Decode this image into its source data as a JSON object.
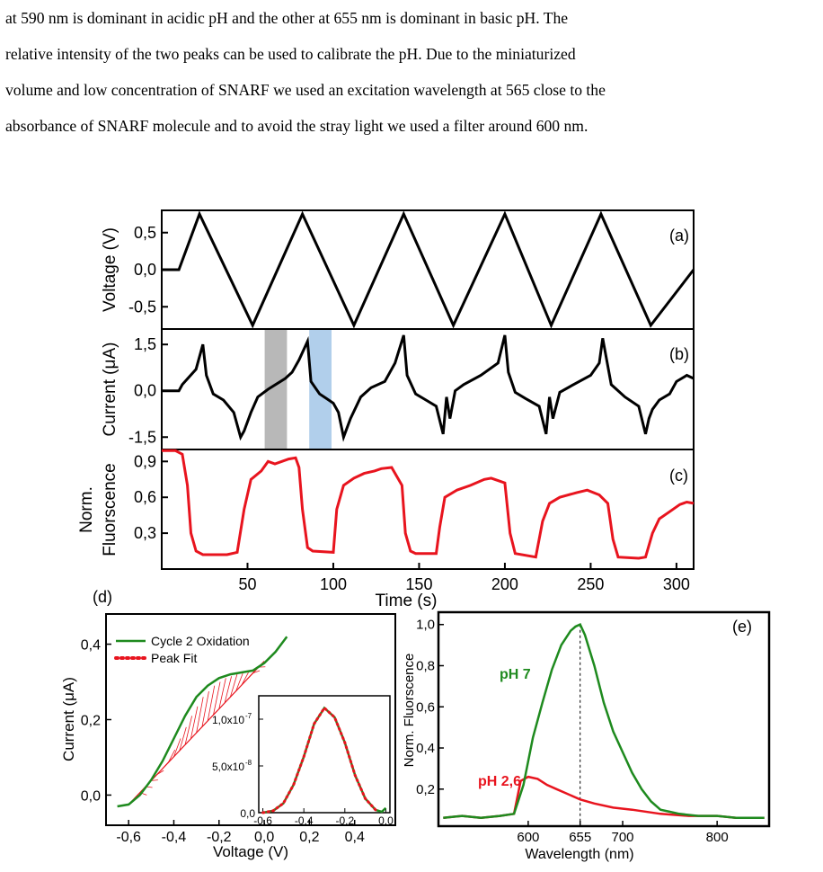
{
  "paragraph": {
    "lines": [
      "at 590 nm is dominant in acidic pH and the other at 655 nm is dominant in basic pH. The",
      "relative intensity of the two peaks can be used to calibrate the pH. Due to the miniaturized",
      "volume and low concentration of SNARF we used an excitation wavelength at 565 close to the",
      "absorbance of SNARF molecule and to avoid the stray light we used a filter around 600 nm."
    ]
  },
  "panel_a": {
    "label": "(a)",
    "ylabel": "Voltage (V)",
    "yticks": [
      "0,5",
      "0,0",
      "-0,5"
    ]
  },
  "panel_b": {
    "label": "(b)",
    "ylabel": "Current (μA)",
    "yticks": [
      "1,5",
      "0,0",
      "-1,5"
    ],
    "highlight_colors": [
      "#a6a6a6",
      "#9dc3e6"
    ]
  },
  "panel_c": {
    "label": "(c)",
    "ylabel_line1": "Norm.",
    "ylabel_line2": "Fluorscence",
    "yticks": [
      "0,9",
      "0,6",
      "0,3"
    ],
    "xticks": [
      "50",
      "100",
      "150",
      "200",
      "250",
      "300"
    ],
    "xlabel": "Time (s)"
  },
  "panel_d": {
    "label": "(d)",
    "ylabel": "Current (μA)",
    "xlabel": "Voltage (V)",
    "yticks": [
      "0,4",
      "0,2",
      "0,0"
    ],
    "xticks": [
      "-0,6",
      "-0,4",
      "-0,2",
      "0,0",
      "0,2",
      "0,4"
    ],
    "legend": [
      "Cycle 2 Oxidation",
      "Peak Fit"
    ],
    "inset_yticks": [
      "1,0x10",
      "5,0x10",
      "0,0"
    ],
    "inset_ysup": [
      "-7",
      "-8"
    ],
    "inset_xticks": [
      "-0,6",
      "-0,4",
      "-0,2",
      "0,0"
    ]
  },
  "panel_e": {
    "label": "(e)",
    "ylabel": "Norm. Fluorscence",
    "xlabel": "Wavelength (nm)",
    "yticks": [
      "1,0",
      "0,8",
      "0,6",
      "0,4",
      "0,2"
    ],
    "xticks": [
      "600",
      "655",
      "700",
      "800"
    ],
    "series_labels": [
      "pH 7",
      "pH 2,6"
    ]
  },
  "colors": {
    "green": "#1e8a1e",
    "red": "#e8141e",
    "black": "#000000"
  },
  "chart_data": [
    {
      "type": "line",
      "panel": "a",
      "xlabel": "Time (s)",
      "ylabel": "Voltage (V)",
      "xlim": [
        0,
        310
      ],
      "ylim": [
        -0.8,
        0.8
      ],
      "x": [
        0,
        10,
        22,
        53,
        82,
        112,
        141,
        170,
        200,
        227,
        256,
        285,
        310
      ],
      "y": [
        0.0,
        0.0,
        0.75,
        -0.75,
        0.75,
        -0.75,
        0.75,
        -0.75,
        0.75,
        -0.75,
        0.75,
        -0.75,
        0.0
      ]
    },
    {
      "type": "line",
      "panel": "b",
      "ylabel": "Current (μA)",
      "xlim": [
        0,
        310
      ],
      "ylim": [
        -1.9,
        2.0
      ],
      "x": [
        0,
        10,
        12,
        20,
        24,
        26,
        30,
        36,
        42,
        46,
        48,
        52,
        56,
        62,
        72,
        76,
        80,
        85,
        87,
        92,
        96,
        100,
        103,
        106,
        110,
        116,
        122,
        130,
        136,
        141,
        143,
        148,
        154,
        160,
        164,
        166,
        168,
        171,
        176,
        186,
        196,
        200,
        202,
        206,
        212,
        220,
        224,
        226,
        228,
        232,
        240,
        250,
        255,
        257,
        262,
        270,
        278,
        282,
        284,
        286,
        290,
        296,
        300,
        306,
        310
      ],
      "y": [
        0.0,
        0.0,
        0.2,
        0.7,
        1.5,
        0.5,
        -0.1,
        -0.3,
        -0.7,
        -1.5,
        -1.3,
        -0.7,
        -0.2,
        0.05,
        0.4,
        0.6,
        1.0,
        1.6,
        0.3,
        -0.1,
        -0.25,
        -0.4,
        -0.7,
        -1.5,
        -0.9,
        -0.2,
        0.1,
        0.3,
        0.9,
        1.8,
        0.5,
        -0.1,
        -0.3,
        -0.5,
        -1.4,
        -0.2,
        -0.9,
        0.0,
        0.2,
        0.5,
        0.9,
        1.8,
        0.6,
        -0.05,
        -0.25,
        -0.5,
        -1.4,
        -0.2,
        -0.9,
        -0.05,
        0.2,
        0.5,
        0.9,
        1.7,
        0.2,
        -0.2,
        -0.5,
        -1.4,
        -0.9,
        -0.6,
        -0.3,
        -0.1,
        0.3,
        0.5,
        0.4
      ],
      "highlights_x": [
        [
          60,
          73
        ],
        [
          86,
          99
        ]
      ]
    },
    {
      "type": "line",
      "panel": "c",
      "xlabel": "Time (s)",
      "ylabel": "Norm. Fluorscence",
      "xlim": [
        0,
        310
      ],
      "ylim": [
        0,
        1.0
      ],
      "x": [
        0,
        8,
        12,
        15,
        17,
        20,
        24,
        30,
        38,
        44,
        48,
        52,
        58,
        62,
        66,
        70,
        74,
        78,
        80,
        82,
        85,
        88,
        100,
        102,
        106,
        112,
        118,
        124,
        128,
        134,
        140,
        142,
        145,
        148,
        160,
        162,
        165,
        172,
        180,
        188,
        192,
        196,
        200,
        203,
        206,
        218,
        222,
        226,
        232,
        242,
        248,
        255,
        260,
        263,
        266,
        278,
        282,
        286,
        290,
        296,
        302,
        306,
        310
      ],
      "y": [
        0.99,
        0.99,
        0.96,
        0.7,
        0.3,
        0.15,
        0.12,
        0.12,
        0.12,
        0.14,
        0.5,
        0.75,
        0.82,
        0.9,
        0.88,
        0.9,
        0.92,
        0.93,
        0.85,
        0.5,
        0.18,
        0.15,
        0.14,
        0.5,
        0.7,
        0.76,
        0.8,
        0.82,
        0.84,
        0.85,
        0.7,
        0.3,
        0.15,
        0.13,
        0.13,
        0.35,
        0.6,
        0.66,
        0.7,
        0.75,
        0.76,
        0.74,
        0.72,
        0.3,
        0.13,
        0.1,
        0.4,
        0.55,
        0.6,
        0.64,
        0.66,
        0.62,
        0.55,
        0.25,
        0.1,
        0.09,
        0.1,
        0.3,
        0.42,
        0.48,
        0.54,
        0.56,
        0.55
      ]
    },
    {
      "type": "line",
      "panel": "d",
      "xlabel": "Voltage (V)",
      "ylabel": "Current (μA)",
      "xlim": [
        -0.7,
        0.58
      ],
      "ylim": [
        -0.08,
        0.48
      ],
      "series": [
        {
          "name": "Cycle 2 Oxidation",
          "x": [
            -0.65,
            -0.6,
            -0.55,
            -0.5,
            -0.45,
            -0.4,
            -0.35,
            -0.3,
            -0.25,
            -0.2,
            -0.15,
            -0.1,
            -0.05,
            0.0,
            0.05,
            0.1
          ],
          "y": [
            -0.03,
            -0.025,
            0.0,
            0.04,
            0.09,
            0.15,
            0.21,
            0.26,
            0.29,
            0.31,
            0.32,
            0.325,
            0.33,
            0.35,
            0.38,
            0.42
          ]
        },
        {
          "name": "Peak Fit",
          "x": [
            -0.6,
            0.0
          ],
          "y": [
            -0.025,
            0.355
          ]
        }
      ],
      "inset": {
        "xlim": [
          -0.62,
          0.02
        ],
        "ylim": [
          0,
          1.25e-07
        ],
        "x": [
          -0.6,
          -0.55,
          -0.5,
          -0.45,
          -0.4,
          -0.35,
          -0.3,
          -0.25,
          -0.2,
          -0.15,
          -0.1,
          -0.05,
          -0.02,
          0.0
        ],
        "y": [
          0.0,
          2e-09,
          1e-08,
          3e-08,
          6e-08,
          9.5e-08,
          1.12e-07,
          1.02e-07,
          7.5e-08,
          4e-08,
          1.5e-08,
          3e-09,
          1e-09,
          5e-09
        ]
      }
    },
    {
      "type": "line",
      "panel": "e",
      "xlabel": "Wavelength (nm)",
      "ylabel": "Norm. Fluorscence",
      "xlim": [
        505,
        855
      ],
      "ylim": [
        0.02,
        1.06
      ],
      "series": [
        {
          "name": "pH 7",
          "x": [
            510,
            530,
            550,
            570,
            585,
            595,
            605,
            615,
            625,
            635,
            645,
            650,
            655,
            660,
            670,
            680,
            690,
            700,
            710,
            720,
            730,
            740,
            750,
            760,
            780,
            800,
            820,
            850
          ],
          "y": [
            0.06,
            0.07,
            0.06,
            0.07,
            0.08,
            0.22,
            0.45,
            0.62,
            0.78,
            0.9,
            0.97,
            0.99,
            1.0,
            0.95,
            0.8,
            0.62,
            0.48,
            0.38,
            0.28,
            0.2,
            0.14,
            0.1,
            0.09,
            0.08,
            0.07,
            0.07,
            0.06,
            0.06
          ]
        },
        {
          "name": "pH 2,6",
          "x": [
            510,
            530,
            550,
            570,
            585,
            592,
            600,
            610,
            620,
            630,
            640,
            655,
            670,
            690,
            710,
            740,
            770,
            800,
            820,
            850
          ],
          "y": [
            0.06,
            0.07,
            0.06,
            0.07,
            0.08,
            0.24,
            0.26,
            0.25,
            0.22,
            0.2,
            0.18,
            0.15,
            0.13,
            0.11,
            0.1,
            0.08,
            0.07,
            0.07,
            0.06,
            0.06
          ]
        }
      ],
      "reference_x": 655
    }
  ]
}
